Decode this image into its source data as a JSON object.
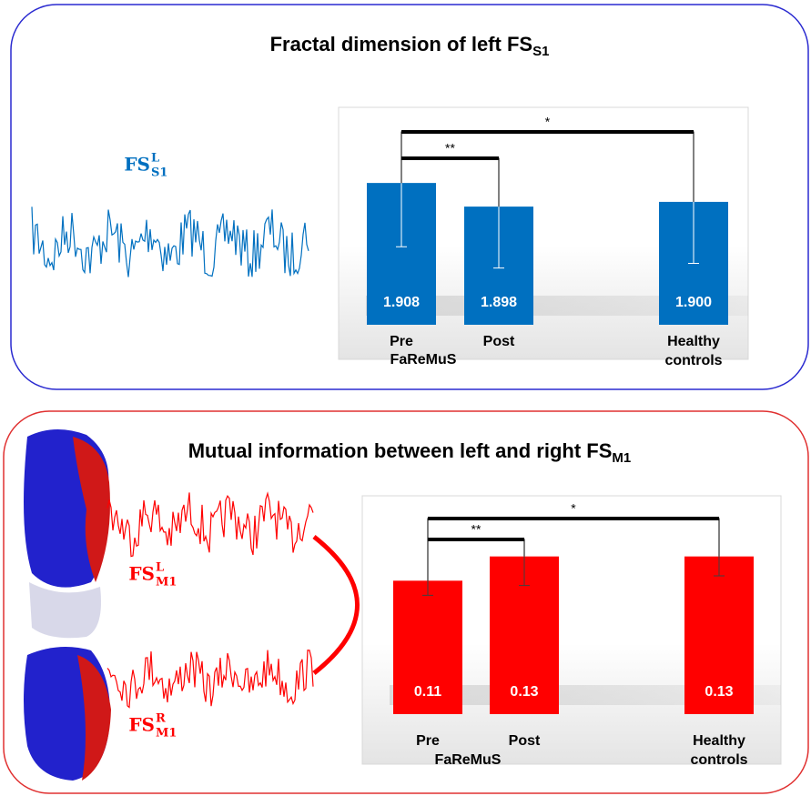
{
  "chart_data": [
    {
      "type": "bar",
      "title": "Fractal dimension of left FS",
      "title_subscript": "S1",
      "categories": [
        "Pre",
        "Post",
        "Healthy controls"
      ],
      "group_label": "FaReMuS",
      "values": [
        1.908,
        1.898,
        1.9
      ],
      "value_labels": [
        "1.908",
        "1.898",
        "1.900"
      ],
      "errors": [
        0.027,
        0.026,
        0.026
      ],
      "color": "#0070c0",
      "error_color": "#ffffff",
      "ylim": [
        1.848,
        1.94
      ],
      "significance": [
        {
          "from": 0,
          "to": 1,
          "label": "**"
        },
        {
          "from": 0,
          "to": 2,
          "label": "*"
        }
      ],
      "signal_labels": [
        {
          "base": "FS",
          "sup": "L",
          "sub": "S1"
        }
      ]
    },
    {
      "type": "bar",
      "title": "Mutual information between left and right FS",
      "title_subscript": "M1",
      "categories": [
        "Pre",
        "Post",
        "Healthy controls"
      ],
      "group_label": "FaReMuS",
      "values": [
        0.11,
        0.13,
        0.13
      ],
      "value_labels": [
        "0.11",
        "0.13",
        "0.13"
      ],
      "errors": [
        0.012,
        0.024,
        0.016
      ],
      "color": "#ff0000",
      "error_color": "#404040",
      "ylim": [
        0,
        0.18
      ],
      "significance": [
        {
          "from": 0,
          "to": 1,
          "label": "**"
        },
        {
          "from": 0,
          "to": 2,
          "label": "*"
        }
      ],
      "signal_labels": [
        {
          "base": "FS",
          "sup": "L",
          "sub": "M1"
        },
        {
          "base": "FS",
          "sup": "R",
          "sub": "M1"
        }
      ]
    }
  ]
}
